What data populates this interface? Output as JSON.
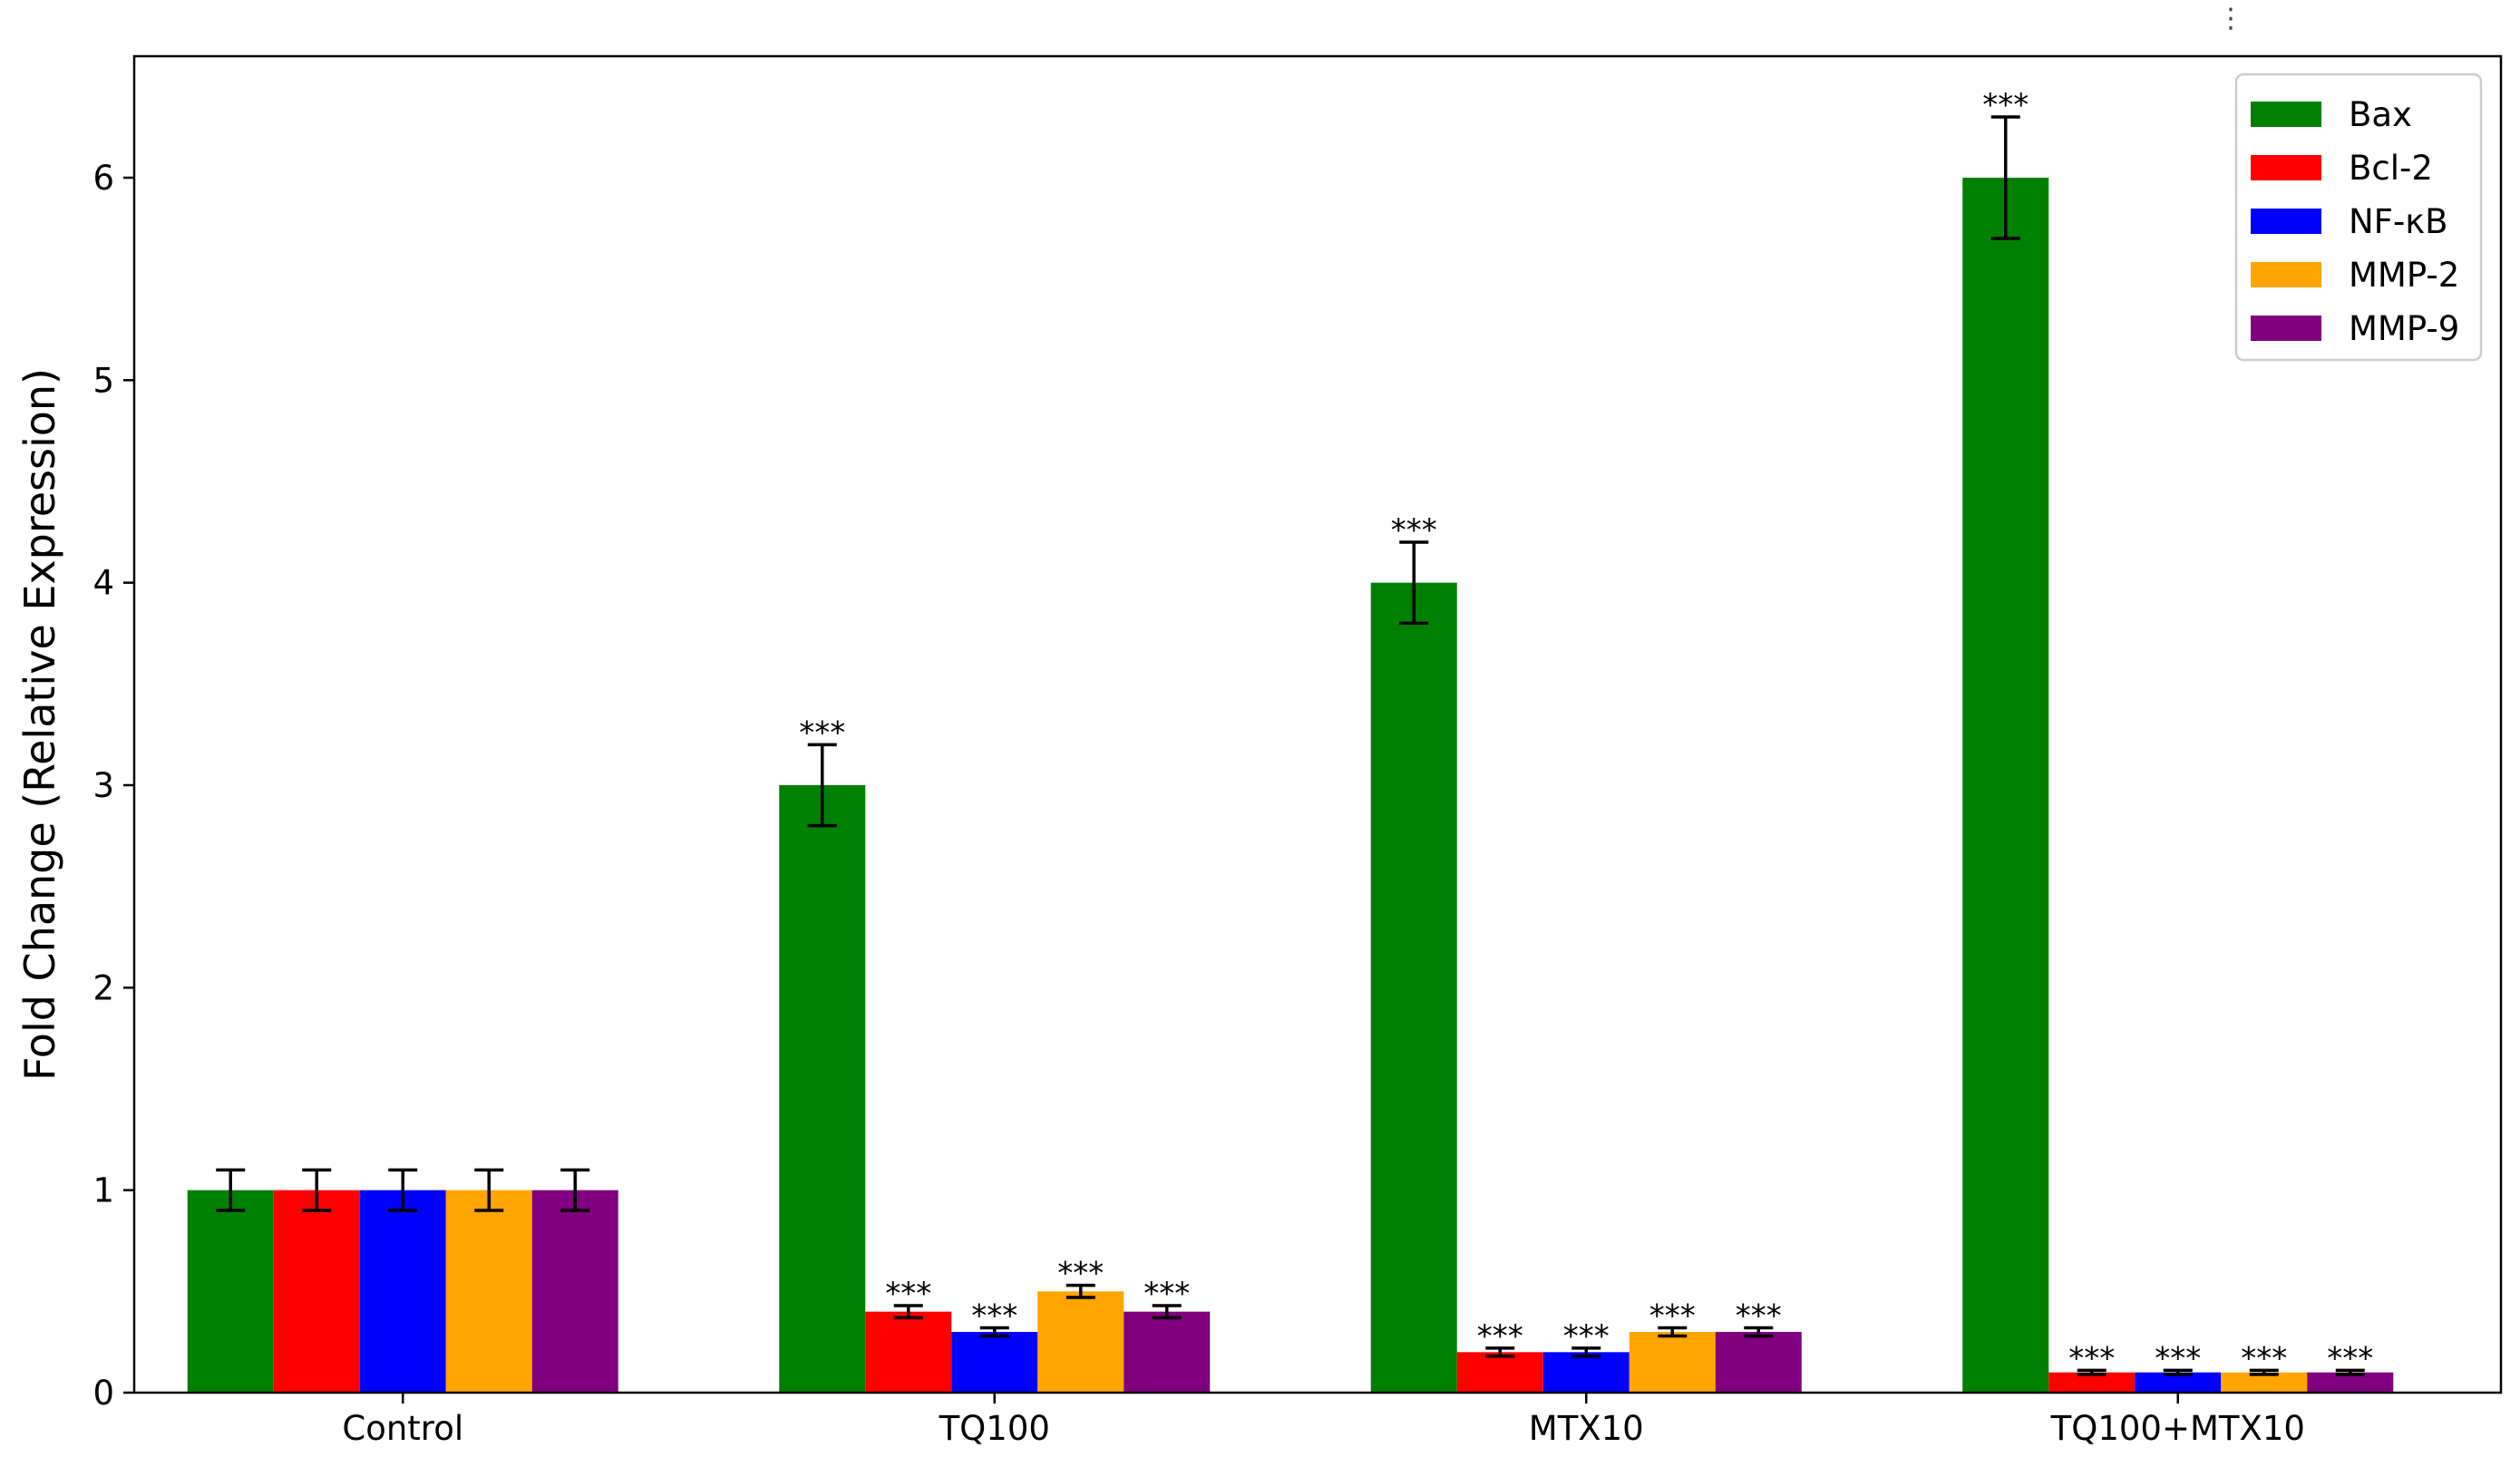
{
  "chart_data": {
    "type": "bar",
    "title": "",
    "xlabel": "",
    "ylabel": "Fold Change (Relative Expression)",
    "ylim": [
      0,
      6.6
    ],
    "yticks": [
      0,
      1,
      2,
      3,
      4,
      5,
      6
    ],
    "categories": [
      "Control",
      "TQ100",
      "MTX10",
      "TQ100+MTX10"
    ],
    "series": [
      {
        "name": "Bax",
        "color": "#008000",
        "values": [
          1,
          3,
          4,
          6
        ],
        "errors": [
          0.1,
          0.2,
          0.2,
          0.3
        ],
        "significance": [
          "",
          "***",
          "***",
          "***"
        ]
      },
      {
        "name": "Bcl-2",
        "color": "#ff0000",
        "values": [
          1,
          0.4,
          0.2,
          0.1
        ],
        "errors": [
          0.1,
          0.03,
          0.02,
          0.01
        ],
        "significance": [
          "",
          "***",
          "***",
          "***"
        ]
      },
      {
        "name": "NF-κB",
        "color": "#0000ff",
        "values": [
          1,
          0.3,
          0.2,
          0.1
        ],
        "errors": [
          0.1,
          0.02,
          0.02,
          0.01
        ],
        "significance": [
          "",
          "***",
          "***",
          "***"
        ]
      },
      {
        "name": "MMP-2",
        "color": "#ffa500",
        "values": [
          1,
          0.5,
          0.3,
          0.1
        ],
        "errors": [
          0.1,
          0.03,
          0.02,
          0.01
        ],
        "significance": [
          "",
          "***",
          "***",
          "***"
        ]
      },
      {
        "name": "MMP-9",
        "color": "#800080",
        "values": [
          1,
          0.4,
          0.3,
          0.1
        ],
        "errors": [
          0.1,
          0.03,
          0.02,
          0.01
        ],
        "significance": [
          "",
          "***",
          "***",
          "***"
        ]
      }
    ],
    "legend_position": "top-right",
    "grid": false
  },
  "ui": {
    "corner_menu": "⋮"
  }
}
